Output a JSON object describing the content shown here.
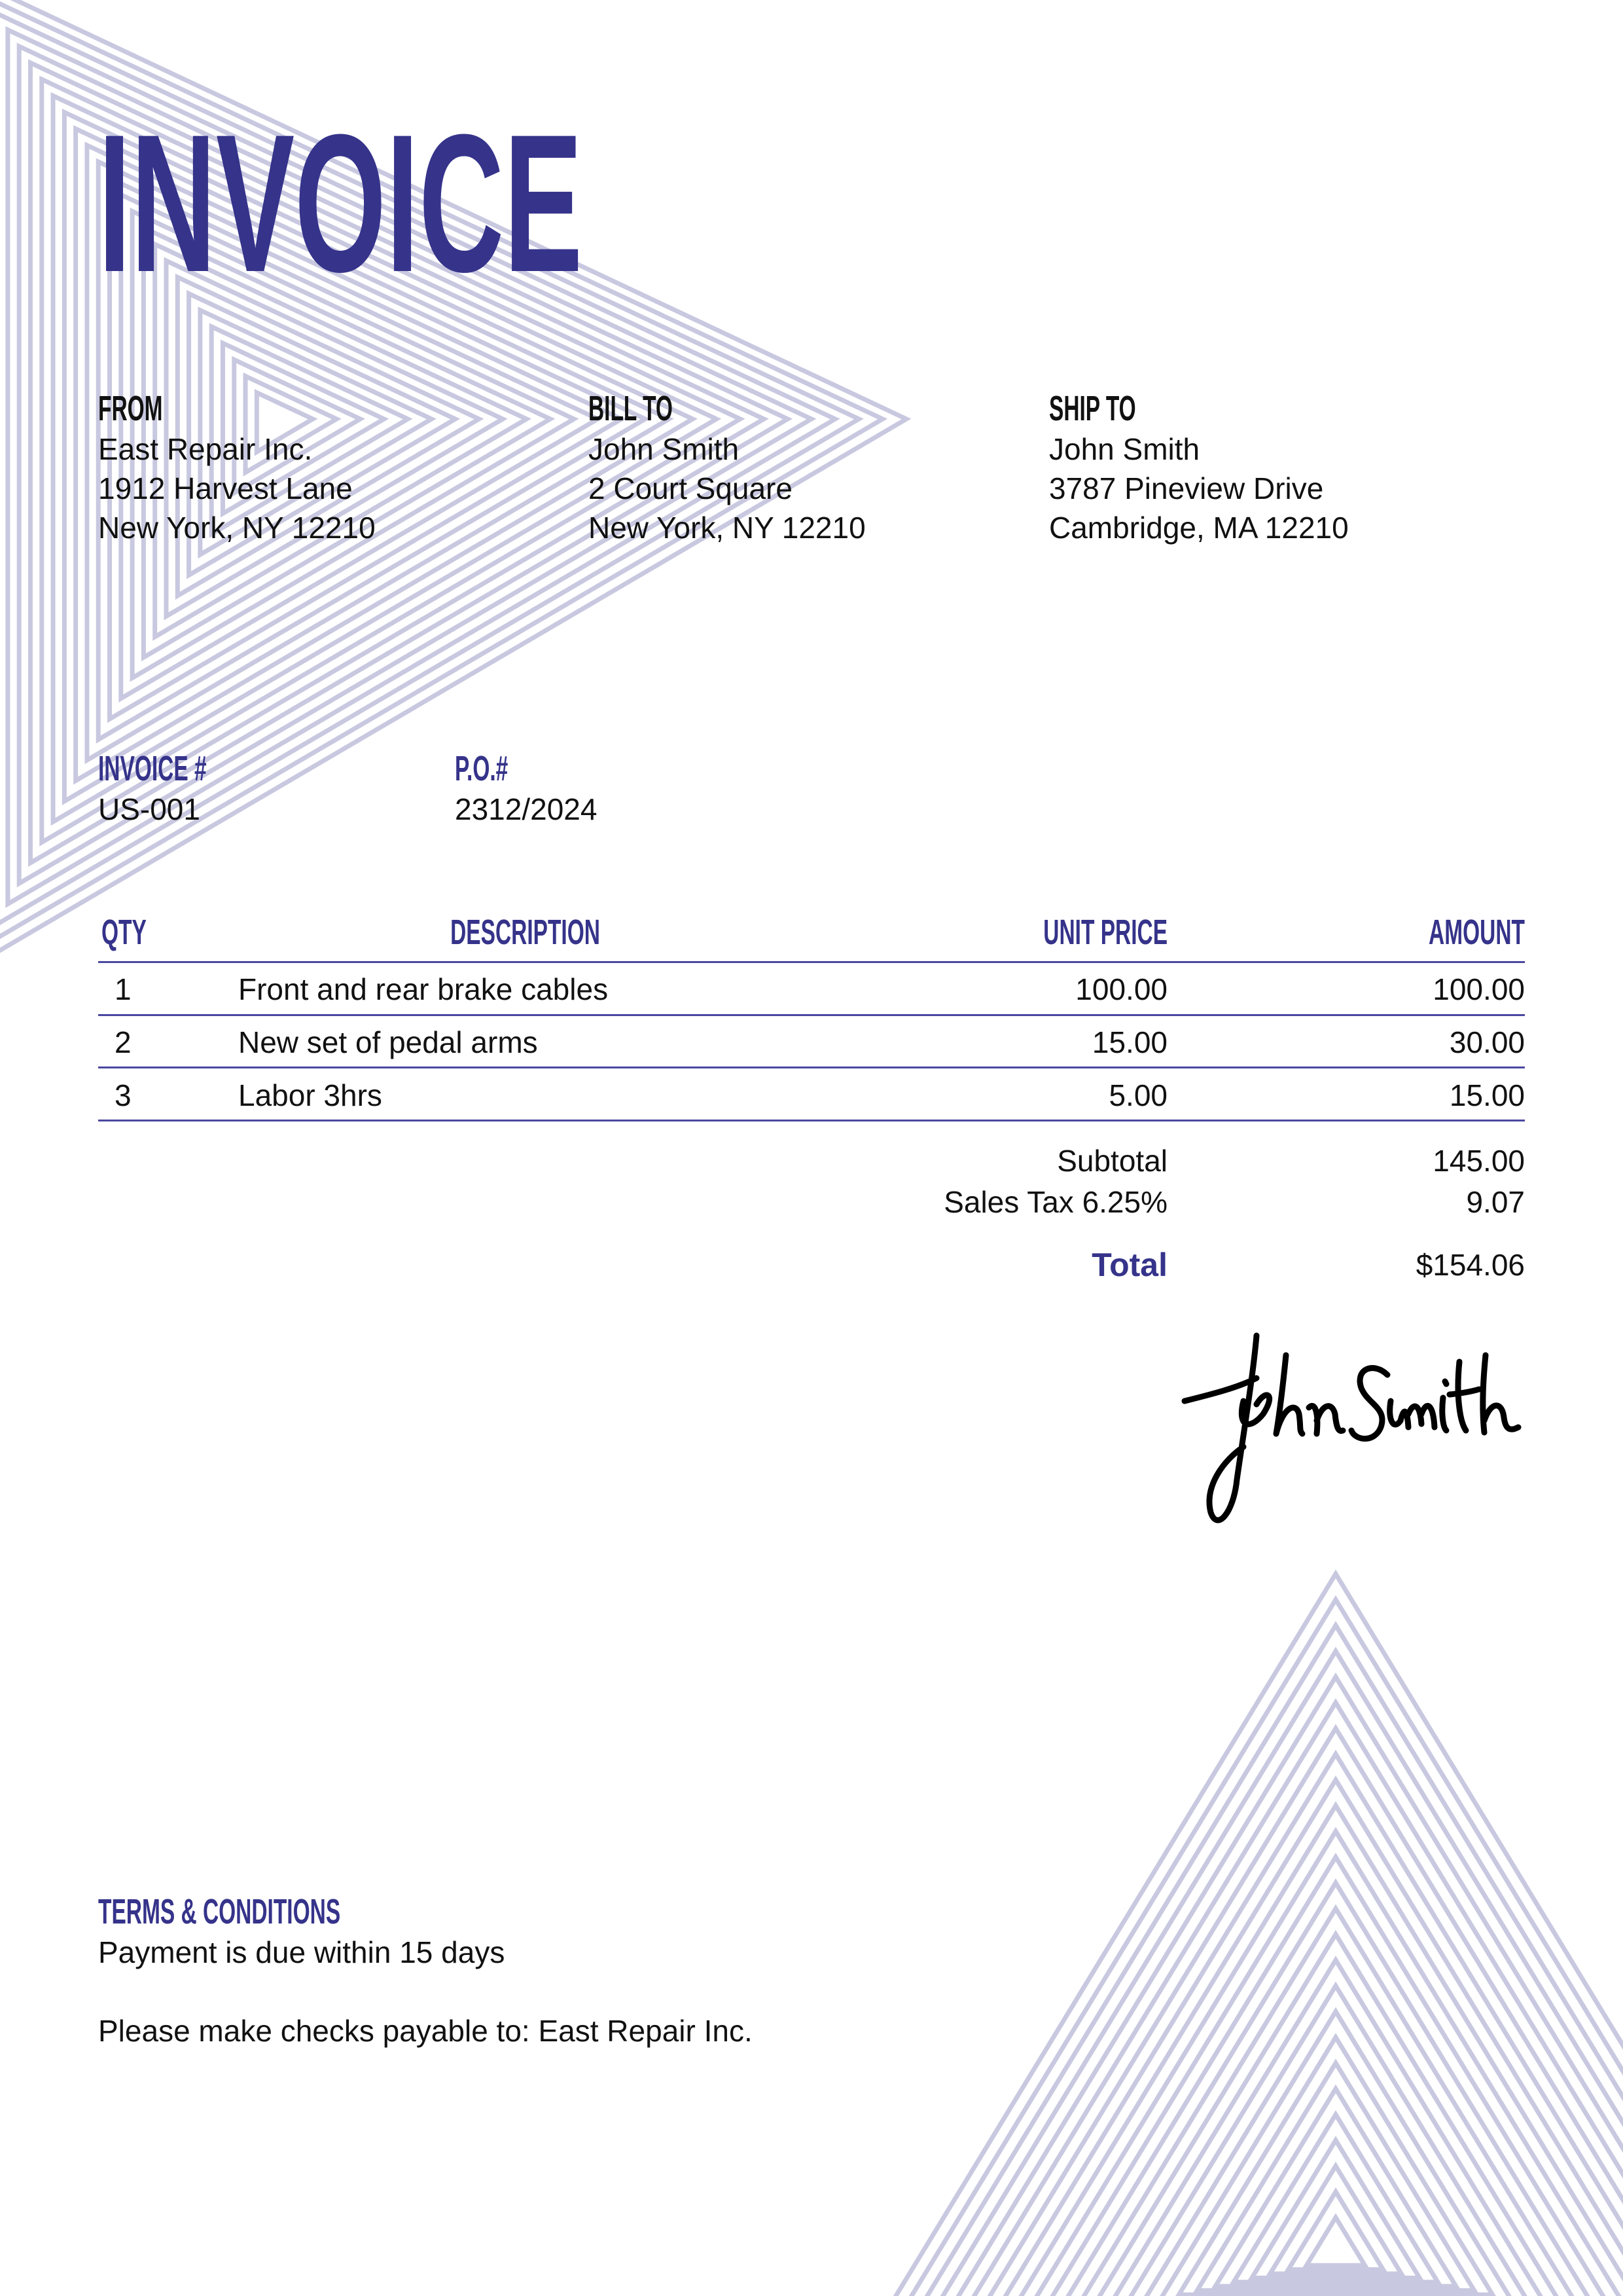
{
  "title": "INVOICE",
  "colors": {
    "accent": "#35338a",
    "pattern": "#c8c8e0",
    "text": "#111111"
  },
  "from": {
    "label": "FROM",
    "lines": [
      "East Repair Inc.",
      "1912 Harvest Lane",
      "New York, NY 12210"
    ]
  },
  "bill_to": {
    "label": "BILL TO",
    "lines": [
      "John Smith",
      "2 Court Square",
      "New York, NY 12210"
    ]
  },
  "ship_to": {
    "label": "SHIP TO",
    "lines": [
      "John Smith",
      "3787 Pineview Drive",
      "Cambridge, MA 12210"
    ]
  },
  "meta": {
    "invoice_label": "INVOICE #",
    "invoice_value": "US-001",
    "po_label": "P.O.#",
    "po_value": "2312/2024"
  },
  "table": {
    "headers": {
      "qty": "QTY",
      "description": "DESCRIPTION",
      "unit_price": "UNIT PRICE",
      "amount": "AMOUNT"
    },
    "rows": [
      {
        "qty": "1",
        "description": "Front and rear brake cables",
        "unit_price": "100.00",
        "amount": "100.00"
      },
      {
        "qty": "2",
        "description": "New set of pedal arms",
        "unit_price": "15.00",
        "amount": "30.00"
      },
      {
        "qty": "3",
        "description": "Labor 3hrs",
        "unit_price": "5.00",
        "amount": "15.00"
      }
    ]
  },
  "totals": {
    "subtotal_label": "Subtotal",
    "subtotal_value": "145.00",
    "tax_label": "Sales Tax 6.25%",
    "tax_value": "9.07",
    "total_label": "Total",
    "total_value": "$154.06"
  },
  "signature": "John Smith",
  "terms": {
    "label": "TERMS & CONDITIONS",
    "lines": [
      "Payment is due within 15 days",
      "Please make checks payable to: East Repair Inc."
    ]
  }
}
